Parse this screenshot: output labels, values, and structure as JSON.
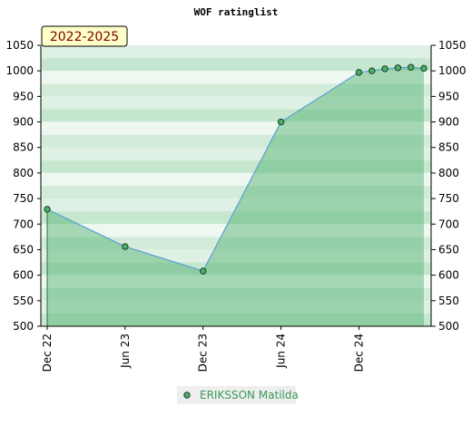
{
  "chart_data": {
    "type": "area",
    "title": "WOF ratinglist",
    "badge": "2022-2025",
    "x": [
      "2022-12",
      "2023-06",
      "2023-12",
      "2024-06",
      "2024-12",
      "2025-01",
      "2025-02",
      "2025-03",
      "2025-04",
      "2025-05"
    ],
    "series": [
      {
        "name": "ERIKSSON Matilda",
        "color": "#5a9fd4",
        "values": [
          729,
          656,
          608,
          900,
          997,
          1000,
          1004,
          1006,
          1007,
          1005
        ]
      }
    ],
    "xlim": [
      "2022-12",
      "2025-05"
    ],
    "xticks": [
      {
        "value": "2022-12",
        "label": "Dec 22"
      },
      {
        "value": "2023-06",
        "label": "Jun 23"
      },
      {
        "value": "2023-12",
        "label": "Dec 23"
      },
      {
        "value": "2024-06",
        "label": "Jun 24"
      },
      {
        "value": "2024-12",
        "label": "Dec 24"
      }
    ],
    "ylim": [
      500,
      1050
    ],
    "yticks": [
      500,
      550,
      600,
      650,
      700,
      750,
      800,
      850,
      900,
      950,
      1000,
      1050
    ],
    "y2lim": [
      500,
      1050
    ],
    "y2ticks": [
      500,
      550,
      600,
      650,
      700,
      750,
      800,
      850,
      900,
      950,
      1000,
      1050
    ]
  }
}
